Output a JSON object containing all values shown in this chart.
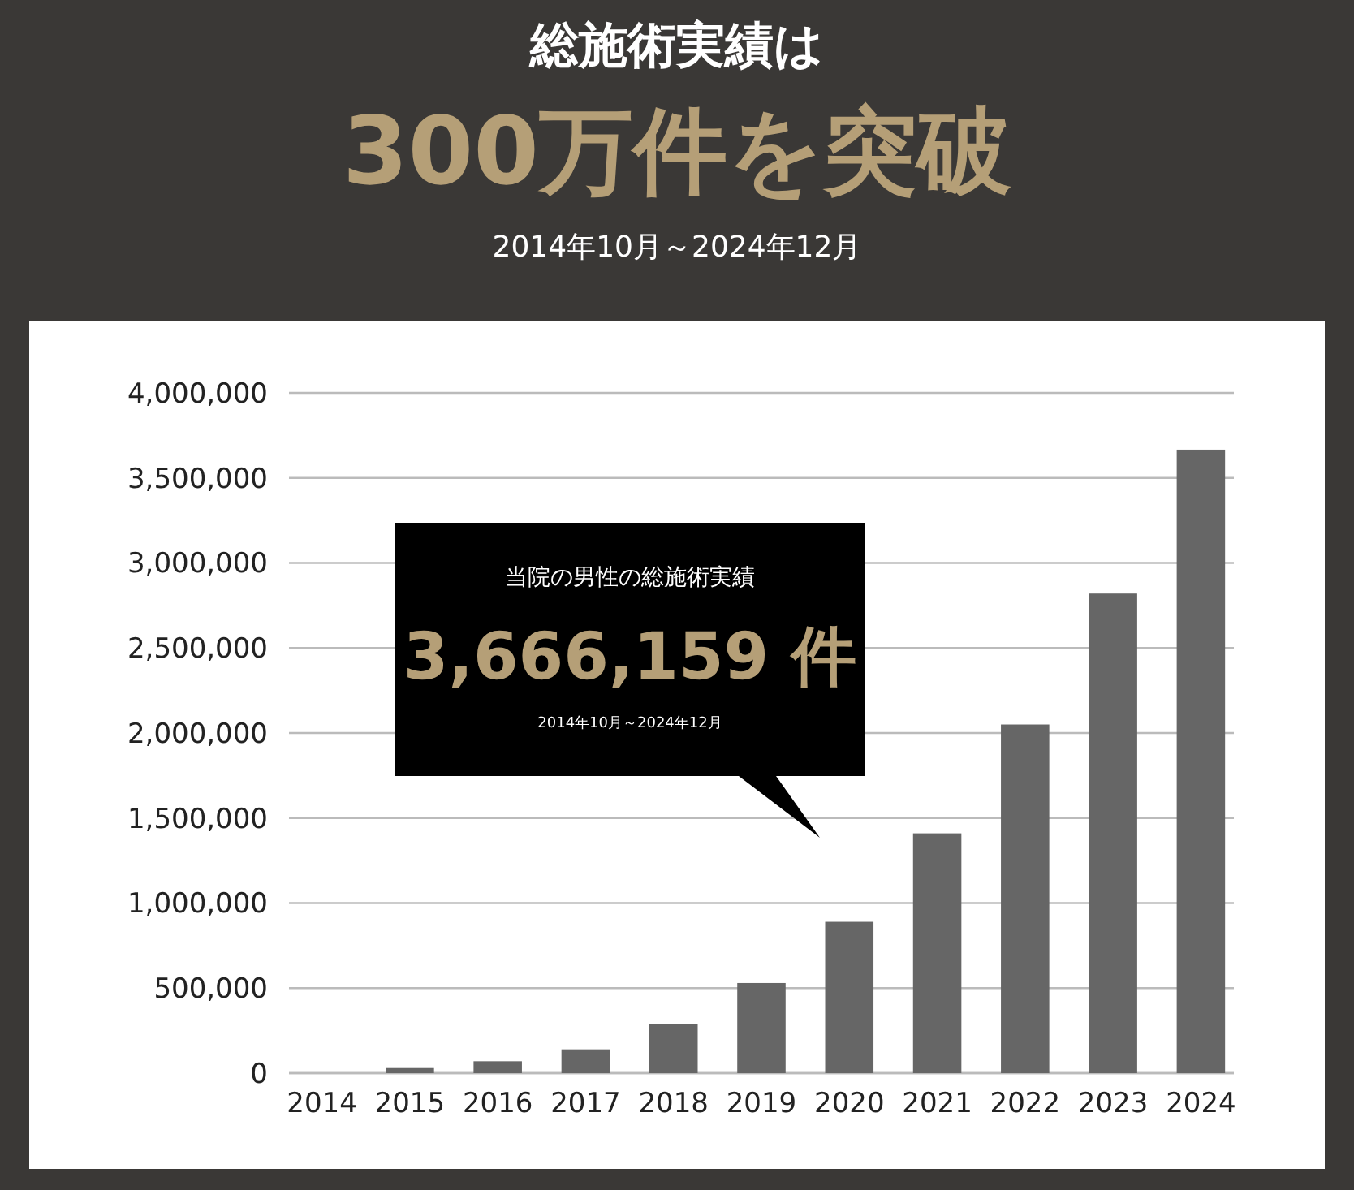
{
  "chart_data": {
    "type": "bar",
    "title": "総施術実績は",
    "subtitle": "300万件を突破",
    "annotations": [
      "2014年10月～2024年12月",
      "当院の男性の総施術実績",
      "3,666,159 件",
      "2014年10月～2024年12月"
    ],
    "categories": [
      "2014",
      "2015",
      "2016",
      "2017",
      "2018",
      "2019",
      "2020",
      "2021",
      "2022",
      "2023",
      "2024"
    ],
    "values": [
      0,
      30000,
      70000,
      140000,
      290000,
      530000,
      890000,
      1410000,
      2050000,
      2820000,
      3666159
    ],
    "color": "#666666",
    "ylim": [
      0,
      4000000
    ],
    "yticks": [
      0,
      {
        "value": 500000,
        "label": "500,000"
      },
      {
        "value": 1000000,
        "label": "1,000,000"
      },
      {
        "value": 1500000,
        "label": "1,500,000"
      },
      {
        "value": 2000000,
        "label": "2,000,000"
      },
      {
        "value": 2500000,
        "label": "2,500,000"
      },
      {
        "value": 3000000,
        "label": "3,000,000"
      },
      {
        "value": 3500000,
        "label": "3,500,000"
      },
      {
        "value": 4000000,
        "label": "4,000,000"
      }
    ],
    "grid": "y"
  }
}
